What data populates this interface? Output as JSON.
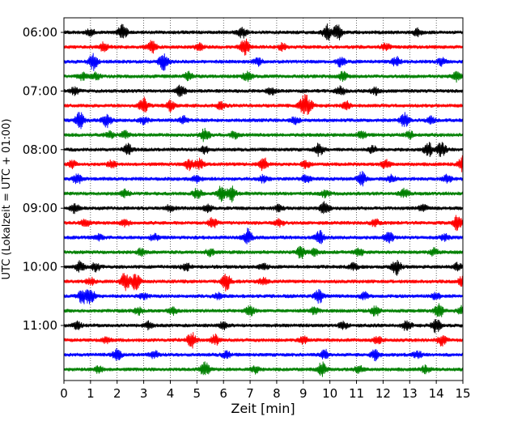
{
  "chart_data": {
    "type": "line",
    "xlabel": "Zeit  [min]",
    "ylabel": "UTC (Lokalzeit = UTC + 01:00)",
    "xlim": [
      0,
      15
    ],
    "xticks": [
      "0",
      "1",
      "2",
      "3",
      "4",
      "5",
      "6",
      "7",
      "8",
      "9",
      "10",
      "11",
      "12",
      "13",
      "14",
      "15"
    ],
    "yticks": [
      "06:00",
      "07:00",
      "08:00",
      "09:00",
      "10:00",
      "11:00"
    ],
    "grid": "vertical dotted",
    "trace_colors": [
      "#000000",
      "#ff0000",
      "#0000ff",
      "#008000"
    ],
    "traces": [
      {
        "start": "06:00",
        "events": [
          [
            1.0,
            0.4
          ],
          [
            2.2,
            0.9
          ],
          [
            6.7,
            0.6
          ],
          [
            9.9,
            1.0
          ],
          [
            10.3,
            0.9
          ],
          [
            13.3,
            0.4
          ]
        ]
      },
      {
        "start": "06:15",
        "events": [
          [
            1.5,
            0.5
          ],
          [
            3.3,
            0.7
          ],
          [
            5.1,
            0.4
          ],
          [
            6.8,
            1.0
          ],
          [
            8.2,
            0.4
          ],
          [
            12.1,
            0.4
          ]
        ]
      },
      {
        "start": "06:30",
        "events": [
          [
            1.1,
            1.0
          ],
          [
            3.7,
            0.5
          ],
          [
            3.8,
            0.5
          ],
          [
            7.3,
            0.4
          ],
          [
            10.4,
            0.6
          ],
          [
            12.5,
            0.5
          ],
          [
            14.2,
            0.4
          ]
        ]
      },
      {
        "start": "06:45",
        "events": [
          [
            0.7,
            0.4
          ],
          [
            1.2,
            0.4
          ],
          [
            4.7,
            0.5
          ],
          [
            6.9,
            0.6
          ],
          [
            10.5,
            0.5
          ],
          [
            14.8,
            0.6
          ]
        ]
      },
      {
        "start": "07:00",
        "events": [
          [
            0.4,
            0.4
          ],
          [
            4.4,
            0.7
          ],
          [
            7.8,
            0.4
          ],
          [
            10.4,
            0.5
          ],
          [
            11.7,
            0.4
          ]
        ]
      },
      {
        "start": "07:15",
        "events": [
          [
            3.0,
            0.9
          ],
          [
            4.0,
            0.6
          ],
          [
            5.9,
            0.4
          ],
          [
            9.0,
            1.0
          ],
          [
            9.2,
            0.8
          ],
          [
            10.6,
            0.5
          ]
        ]
      },
      {
        "start": "07:30",
        "events": [
          [
            0.6,
            1.0
          ],
          [
            1.6,
            0.8
          ],
          [
            3.0,
            0.4
          ],
          [
            4.5,
            0.4
          ],
          [
            8.7,
            0.4
          ],
          [
            12.8,
            0.8
          ],
          [
            13.8,
            0.4
          ]
        ]
      },
      {
        "start": "07:45",
        "events": [
          [
            1.7,
            0.4
          ],
          [
            2.3,
            0.4
          ],
          [
            5.3,
            0.8
          ],
          [
            6.4,
            0.4
          ],
          [
            11.2,
            0.4
          ],
          [
            13.0,
            0.4
          ]
        ]
      },
      {
        "start": "08:00",
        "events": [
          [
            2.4,
            0.6
          ],
          [
            5.3,
            0.4
          ],
          [
            9.6,
            0.7
          ],
          [
            11.6,
            0.4
          ],
          [
            13.7,
            0.8
          ],
          [
            14.2,
            0.9
          ]
        ]
      },
      {
        "start": "08:15",
        "events": [
          [
            0.3,
            0.4
          ],
          [
            1.8,
            0.4
          ],
          [
            4.7,
            0.7
          ],
          [
            5.1,
            0.6
          ],
          [
            7.5,
            0.8
          ],
          [
            9.1,
            0.4
          ],
          [
            12.1,
            0.5
          ],
          [
            15.0,
            0.9
          ]
        ]
      },
      {
        "start": "08:30",
        "events": [
          [
            0.5,
            0.6
          ],
          [
            5.0,
            0.4
          ],
          [
            7.5,
            0.4
          ],
          [
            9.1,
            0.5
          ],
          [
            11.2,
            0.8
          ],
          [
            12.3,
            0.4
          ],
          [
            14.4,
            0.4
          ]
        ]
      },
      {
        "start": "08:45",
        "events": [
          [
            2.3,
            0.4
          ],
          [
            5.0,
            0.6
          ],
          [
            5.9,
            0.8
          ],
          [
            6.3,
            0.9
          ],
          [
            9.8,
            0.4
          ],
          [
            12.8,
            0.5
          ]
        ]
      },
      {
        "start": "09:00",
        "events": [
          [
            0.4,
            0.5
          ],
          [
            4.0,
            0.4
          ],
          [
            5.4,
            0.4
          ],
          [
            8.1,
            0.4
          ],
          [
            9.8,
            0.7
          ],
          [
            13.5,
            0.4
          ]
        ]
      },
      {
        "start": "09:15",
        "events": [
          [
            0.8,
            0.4
          ],
          [
            2.3,
            0.4
          ],
          [
            5.6,
            0.6
          ],
          [
            8.1,
            0.4
          ],
          [
            11.7,
            0.4
          ],
          [
            14.8,
            0.9
          ]
        ]
      },
      {
        "start": "09:30",
        "events": [
          [
            1.3,
            0.4
          ],
          [
            3.4,
            0.4
          ],
          [
            6.9,
            1.0
          ],
          [
            9.6,
            0.8
          ],
          [
            12.2,
            0.8
          ],
          [
            14.3,
            0.4
          ]
        ]
      },
      {
        "start": "09:45",
        "events": [
          [
            2.9,
            0.4
          ],
          [
            5.5,
            0.4
          ],
          [
            8.9,
            0.7
          ],
          [
            9.4,
            0.4
          ],
          [
            11.1,
            0.4
          ],
          [
            13.9,
            0.4
          ]
        ]
      },
      {
        "start": "10:00",
        "events": [
          [
            0.6,
            0.6
          ],
          [
            1.2,
            0.5
          ],
          [
            4.6,
            0.4
          ],
          [
            7.5,
            0.4
          ],
          [
            10.9,
            0.4
          ],
          [
            12.5,
            1.0
          ],
          [
            14.8,
            0.4
          ]
        ]
      },
      {
        "start": "10:15",
        "events": [
          [
            1.0,
            0.4
          ],
          [
            2.3,
            1.0
          ],
          [
            2.7,
            1.0
          ],
          [
            6.1,
            1.0
          ],
          [
            7.5,
            0.4
          ],
          [
            15.0,
            0.7
          ]
        ]
      },
      {
        "start": "10:30",
        "events": [
          [
            0.7,
            0.8
          ],
          [
            1.0,
            0.8
          ],
          [
            3.0,
            0.4
          ],
          [
            5.8,
            0.4
          ],
          [
            9.6,
            0.8
          ],
          [
            11.3,
            0.4
          ],
          [
            14.0,
            0.4
          ]
        ]
      },
      {
        "start": "10:45",
        "events": [
          [
            2.8,
            0.4
          ],
          [
            4.1,
            0.4
          ],
          [
            7.0,
            0.6
          ],
          [
            9.4,
            0.4
          ],
          [
            11.7,
            0.6
          ],
          [
            14.1,
            0.8
          ],
          [
            15.0,
            0.6
          ]
        ]
      },
      {
        "start": "11:00",
        "events": [
          [
            0.5,
            0.4
          ],
          [
            3.2,
            0.4
          ],
          [
            6.0,
            0.4
          ],
          [
            10.5,
            0.4
          ],
          [
            12.9,
            0.7
          ],
          [
            14.0,
            0.8
          ]
        ]
      },
      {
        "start": "11:15",
        "events": [
          [
            1.6,
            0.4
          ],
          [
            4.8,
            0.9
          ],
          [
            5.7,
            0.6
          ],
          [
            9.0,
            0.4
          ],
          [
            11.8,
            0.4
          ],
          [
            14.2,
            0.6
          ]
        ]
      },
      {
        "start": "11:30",
        "events": [
          [
            2.0,
            0.6
          ],
          [
            3.4,
            0.4
          ],
          [
            6.1,
            0.4
          ],
          [
            9.8,
            0.6
          ],
          [
            11.7,
            0.6
          ],
          [
            13.3,
            0.4
          ]
        ]
      },
      {
        "start": "11:45",
        "events": [
          [
            1.3,
            0.4
          ],
          [
            5.3,
            0.8
          ],
          [
            7.2,
            0.4
          ],
          [
            9.7,
            0.8
          ],
          [
            11.1,
            0.4
          ],
          [
            13.6,
            0.4
          ]
        ]
      }
    ]
  }
}
